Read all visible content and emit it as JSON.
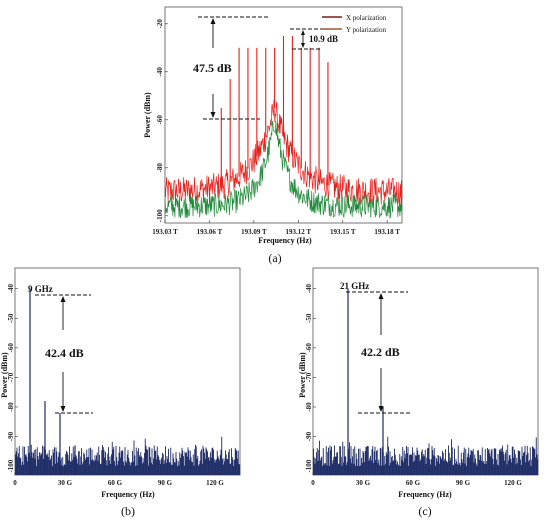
{
  "chart_data": [
    {
      "panel": "(a)",
      "type": "line",
      "xlabel": "Frequency (Hz)",
      "ylabel": "Power (dBm)",
      "xticks": [
        "193.03 T",
        "193.06 T",
        "193.09 T",
        "193.12 T",
        "193.15 T",
        "193.18 T"
      ],
      "xlim": [
        193.03,
        193.19
      ],
      "yticks": [
        "-100",
        "-80",
        "-60",
        "-40",
        "-20"
      ],
      "ylim": [
        -103,
        -13
      ],
      "colors": {
        "x_pol": "#e8201a",
        "y_pol": "#1f8a3a",
        "legend_x": "#7a1c1c",
        "legend_y": "#a05a2c"
      },
      "series": [
        {
          "name": "X polarization",
          "noise_floor": -90
        },
        {
          "name": "Y polarization",
          "noise_floor": -96
        }
      ],
      "comb_lines": {
        "x": [
          193.068,
          193.074,
          193.08,
          193.086,
          193.092,
          193.098,
          193.104,
          193.11,
          193.116,
          193.122,
          193.128,
          193.134,
          193.14
        ],
        "peak": [
          -55,
          -43,
          -30,
          -30,
          -30,
          -30,
          -30,
          -25,
          -25,
          -30,
          -30,
          -30,
          -36
        ]
      },
      "annotations": {
        "span": "47.5 dB",
        "flatness": "10.9 dB"
      }
    },
    {
      "panel": "(b)",
      "type": "bar",
      "xlabel": "Frequency (Hz)",
      "ylabel": "Power (dBm)",
      "xticks": [
        "0",
        "30 G",
        "60 G",
        "90 G",
        "120 G"
      ],
      "xlim": [
        0,
        135
      ],
      "yticks": [
        "-100",
        "-90",
        "-80",
        "-70",
        "-60",
        "-50",
        "-40"
      ],
      "ylim": [
        -103,
        -33
      ],
      "color": "#1c2a66",
      "peaks": {
        "x": [
          9,
          18,
          27,
          36
        ],
        "values": [
          -40,
          -78,
          -82,
          -93
        ]
      },
      "annotations": {
        "peak_label": "9 GHz",
        "span": "42.4 dB"
      }
    },
    {
      "panel": "(c)",
      "type": "bar",
      "xlabel": "Frequency (Hz)",
      "ylabel": "Power (dBm)",
      "xticks": [
        "0",
        "30 G",
        "60 G",
        "90 G",
        "120 G"
      ],
      "xlim": [
        0,
        135
      ],
      "yticks": [
        "-100",
        "-90",
        "-80",
        "-70",
        "-60",
        "-50",
        "-40"
      ],
      "ylim": [
        -103,
        -33
      ],
      "color": "#1c2a66",
      "peaks": {
        "x": [
          21,
          42
        ],
        "values": [
          -40,
          -80
        ]
      },
      "annotations": {
        "peak_label": "21 GHz",
        "span": "42.2 dB"
      }
    }
  ]
}
